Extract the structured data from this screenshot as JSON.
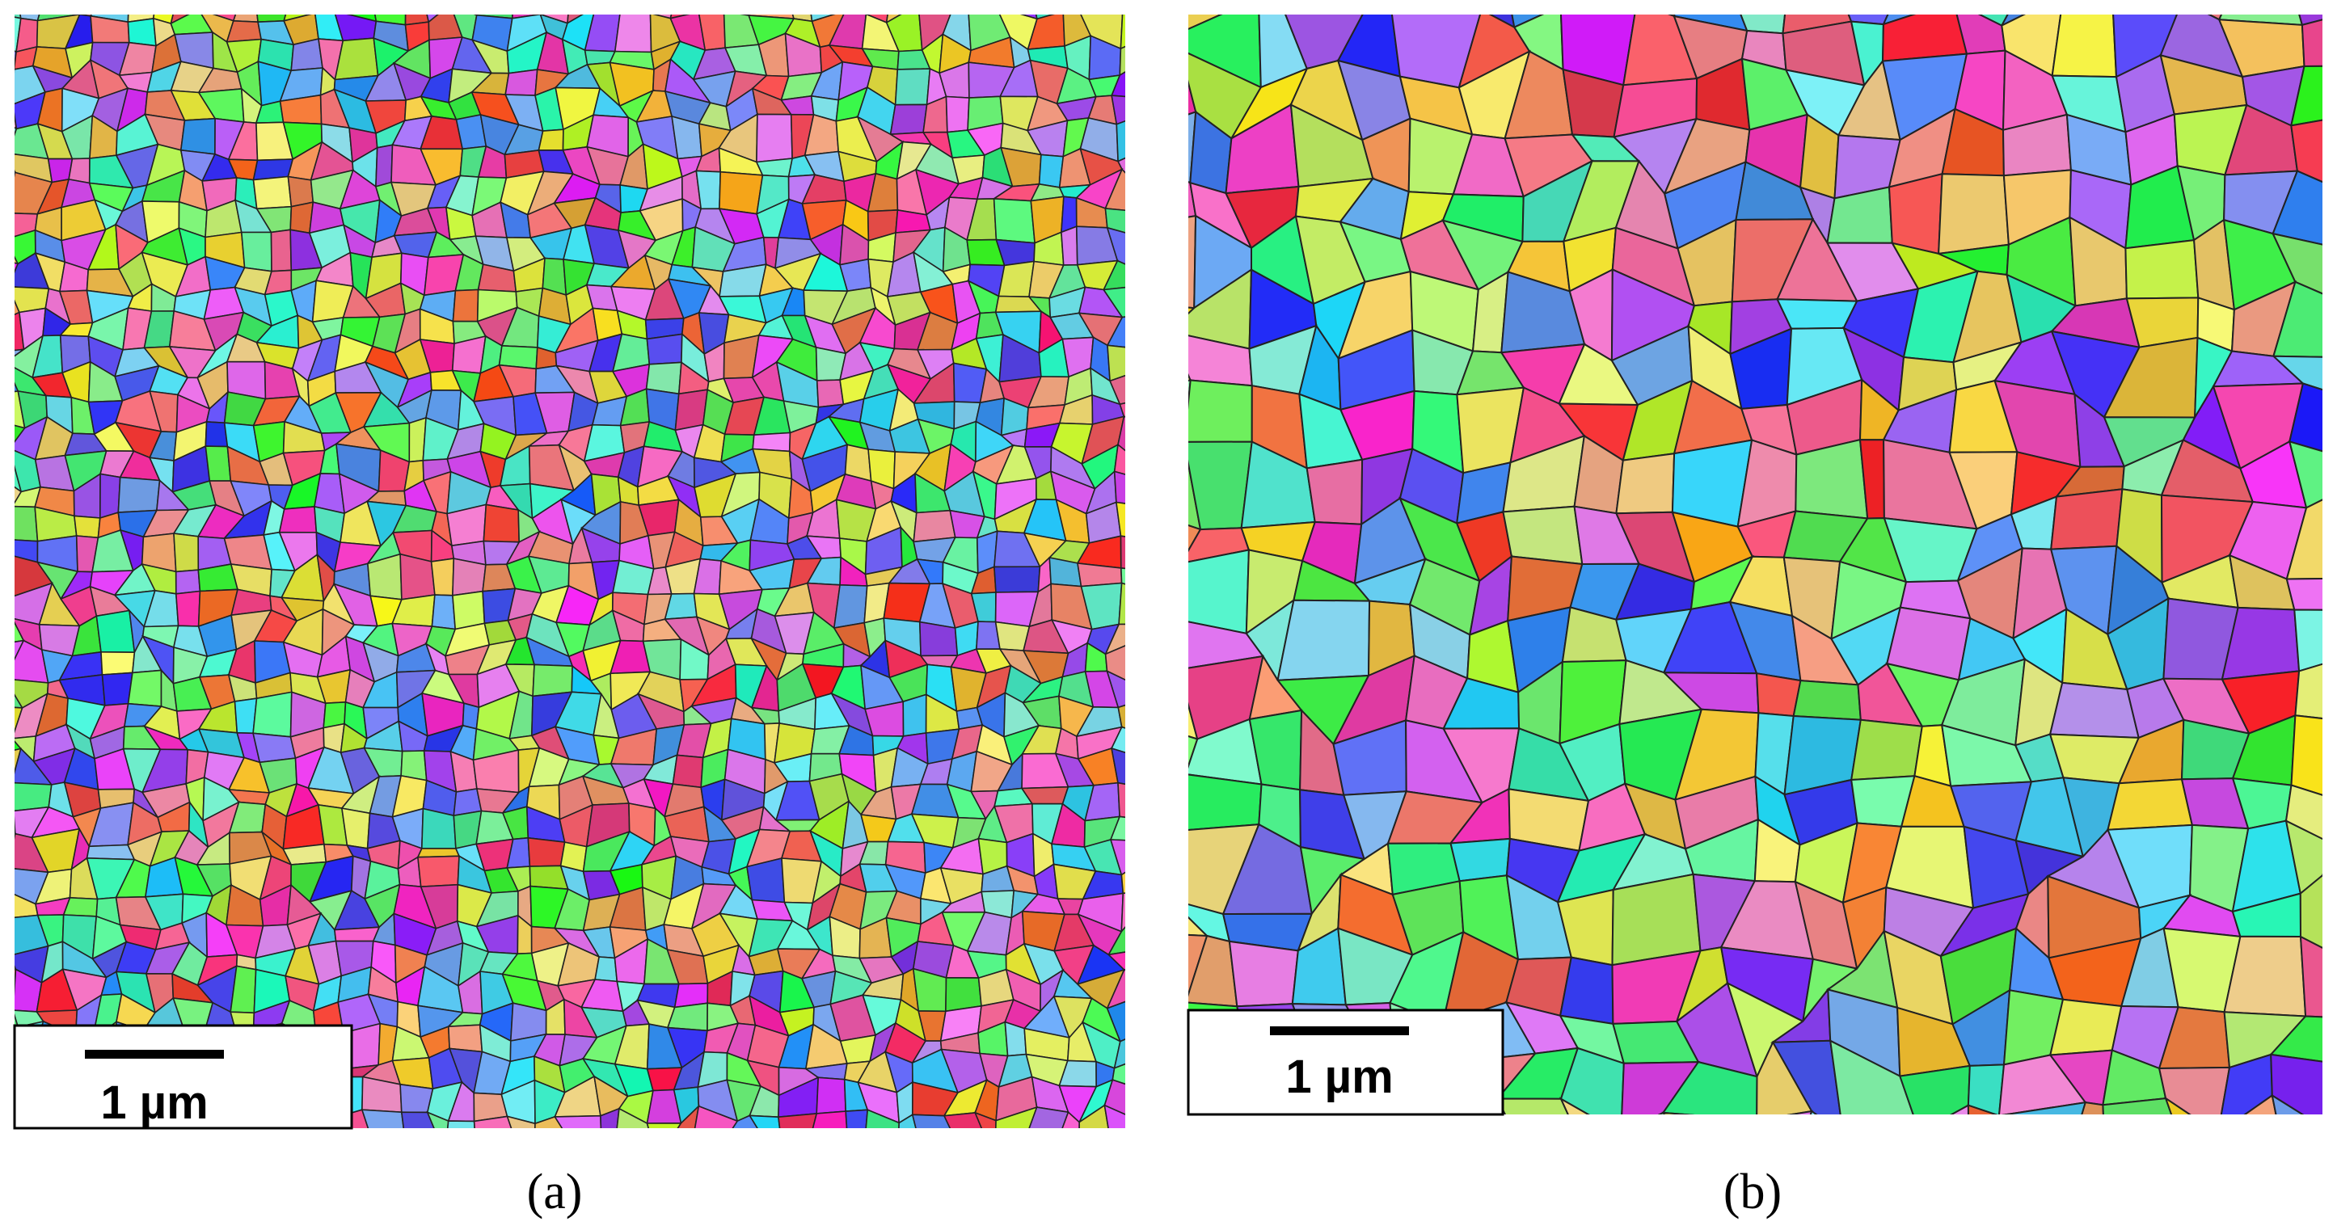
{
  "panels": [
    {
      "scale_bar": "1 µm",
      "label": "(a)"
    },
    {
      "scale_bar": "1 µm",
      "label": "(b)"
    }
  ]
}
